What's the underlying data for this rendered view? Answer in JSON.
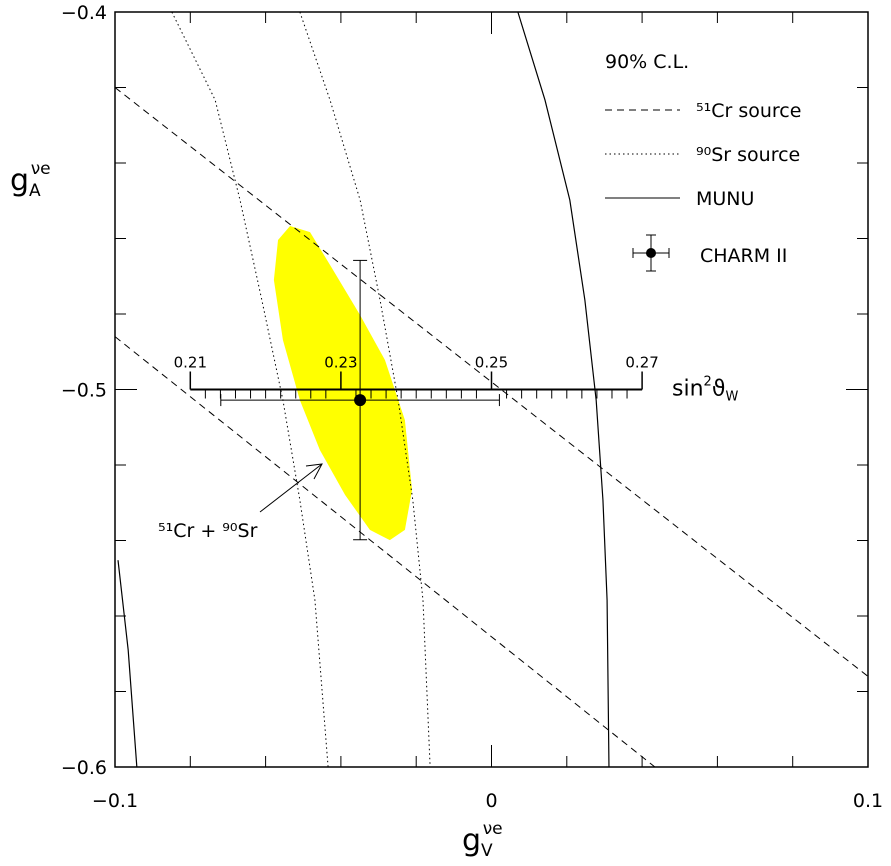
{
  "chart_data": {
    "type": "contour",
    "xlabel": {
      "base": "g",
      "sub": "V",
      "sup": "νe"
    },
    "ylabel": {
      "base": "g",
      "sub": "A",
      "sup": "νe"
    },
    "xlim": [
      -0.1,
      0.1
    ],
    "ylim": [
      -0.6,
      -0.4
    ],
    "xticks": [
      {
        "value": -0.1,
        "label": "−0.1"
      },
      0,
      0.1
    ],
    "yticks": [
      {
        "value": -0.4,
        "label": "−0.4"
      },
      {
        "value": -0.5,
        "label": "−0.5"
      },
      {
        "value": -0.6,
        "label": "−0.6"
      }
    ],
    "xminorticks": [
      -0.08,
      -0.06,
      -0.04,
      -0.02,
      0.02,
      0.04,
      0.06,
      0.08
    ],
    "yminorticks": [
      -0.42,
      -0.44,
      -0.46,
      -0.48,
      -0.52,
      -0.54,
      -0.56,
      -0.58
    ],
    "legend_title": "90% C.L.",
    "series": [
      {
        "name": "⁵¹Cr source",
        "style": "dashed",
        "color": "#000000",
        "lines": [
          {
            "x": [
              -0.1,
              0.1
            ],
            "y": [
              -0.42,
              -0.576
            ]
          },
          {
            "x": [
              -0.1,
              0.0434
            ],
            "y": [
              -0.486,
              -0.6
            ]
          }
        ]
      },
      {
        "name": "⁹⁰Sr source",
        "style": "dotted",
        "color": "#000000",
        "lines": [
          {
            "x": [
              -0.0849,
              -0.0734,
              -0.0668,
              -0.061,
              -0.0554,
              -0.0509,
              -0.0469,
              -0.0434
            ],
            "y": [
              -0.4,
              -0.4233,
              -0.4498,
              -0.4763,
              -0.5028,
              -0.5293,
              -0.5558,
              -0.6
            ]
          },
          {
            "x": [
              -0.0509,
              -0.0429,
              -0.0349,
              -0.0296,
              -0.0248,
              -0.0209,
              -0.0182,
              -0.0163
            ],
            "y": [
              -0.4,
              -0.4233,
              -0.4498,
              -0.4763,
              -0.5028,
              -0.5293,
              -0.5558,
              -0.6
            ]
          }
        ]
      },
      {
        "name": "MUNU",
        "style": "solid",
        "color": "#000000",
        "lines": [
          {
            "x": [
              0.007,
              0.0142,
              0.0208,
              0.0248,
              0.0278,
              0.0296,
              0.0307,
              0.0312
            ],
            "y": [
              -0.4,
              -0.4233,
              -0.4498,
              -0.4763,
              -0.5028,
              -0.5293,
              -0.5558,
              -0.6
            ]
          },
          {
            "x": [
              -0.0992,
              -0.0965,
              -0.0942
            ],
            "y": [
              -0.5452,
              -0.569,
              -0.6
            ]
          }
        ]
      }
    ],
    "point": {
      "name": "CHARM II",
      "x": -0.0349,
      "y": -0.5028,
      "xerr": 0.037,
      "yerr": 0.037,
      "color": "#000000"
    },
    "region": {
      "name": "⁵¹Cr + ⁹⁰Sr",
      "color": "#ffff00",
      "x": [
        -0.0535,
        -0.0482,
        -0.0429,
        -0.0349,
        -0.0283,
        -0.023,
        -0.0211,
        -0.023,
        -0.027,
        -0.0323,
        -0.0389,
        -0.0456,
        -0.0509,
        -0.0554,
        -0.0578,
        -0.0567
      ],
      "y": [
        -0.4567,
        -0.4583,
        -0.467,
        -0.4803,
        -0.4922,
        -0.5081,
        -0.5266,
        -0.5372,
        -0.5399,
        -0.5372,
        -0.5279,
        -0.516,
        -0.5028,
        -0.4869,
        -0.471,
        -0.4604
      ]
    },
    "sin2_axis": {
      "label": {
        "base": "sin",
        "sup": "2",
        "mid": "ϑ",
        "sub": "W"
      },
      "at_y": -0.5,
      "gv_range": [
        -0.08,
        0.04
      ],
      "lim": [
        0.21,
        0.27
      ],
      "ticks": [
        0.21,
        0.23,
        0.25,
        0.27
      ],
      "minorticks": [
        0.212,
        0.214,
        0.216,
        0.218,
        0.22,
        0.222,
        0.224,
        0.226,
        0.228,
        0.232,
        0.234,
        0.236,
        0.238,
        0.24,
        0.242,
        0.244,
        0.246,
        0.248,
        0.252,
        0.254,
        0.256,
        0.258,
        0.26,
        0.262,
        0.264,
        0.266,
        0.268
      ]
    }
  }
}
